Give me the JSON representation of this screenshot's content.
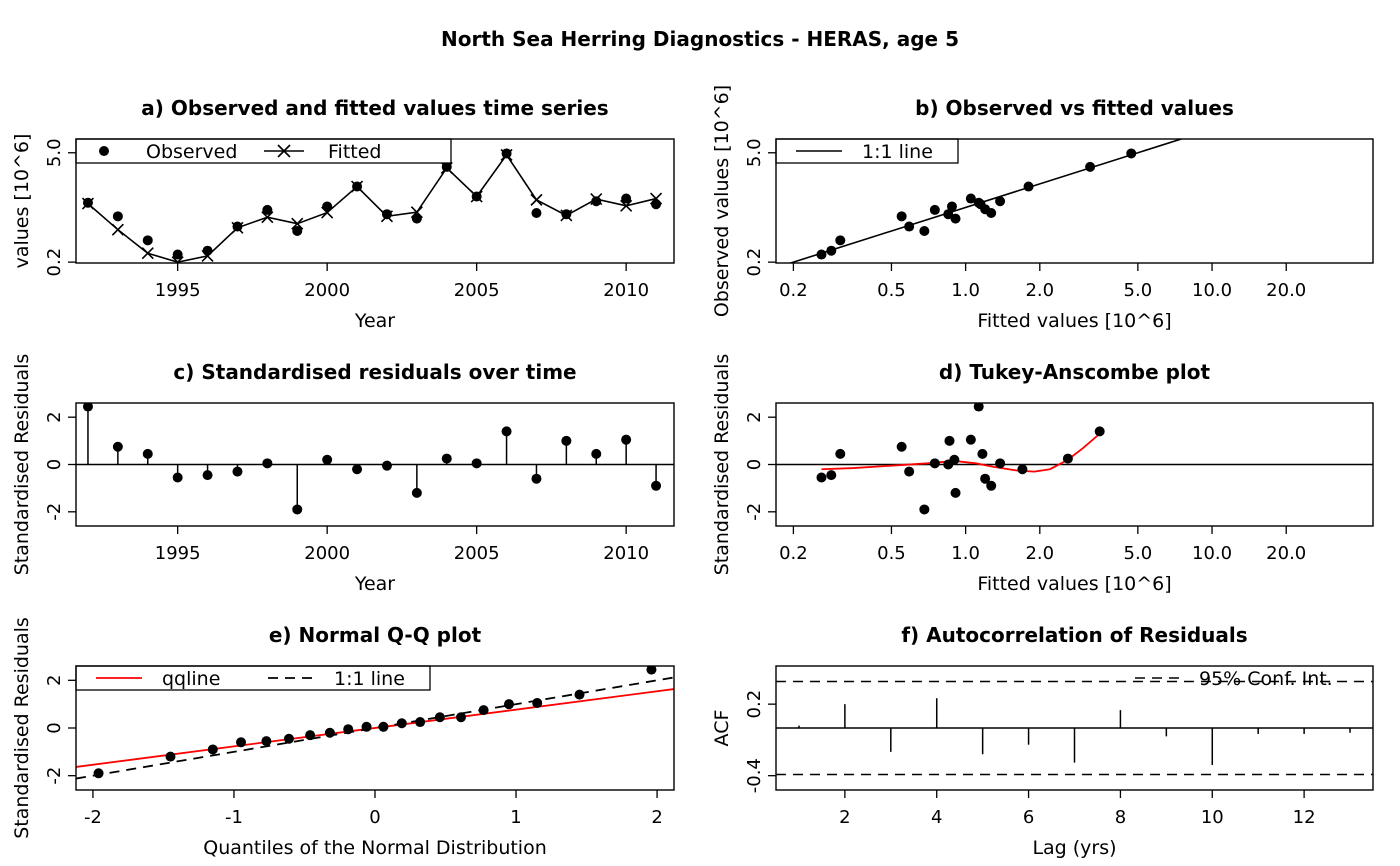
{
  "figure": {
    "title": "North Sea Herring Diagnostics - HERAS, age 5"
  },
  "chart_data": [
    {
      "id": "a",
      "type": "line",
      "title": "a) Observed and fitted values time series",
      "xlabel": "Year",
      "ylabel": "values [10^6]",
      "xlim": [
        1991.6,
        2011.6
      ],
      "ylim": [
        0.195,
        7.5
      ],
      "ylog": true,
      "x_ticks": [
        1995,
        2000,
        2005,
        2010
      ],
      "y_ticks": [
        0.2,
        5.0
      ],
      "y_tick_labels": [
        "0.2",
        "5.0"
      ],
      "x": [
        1992,
        1993,
        1994,
        1995,
        1996,
        1997,
        1998,
        1999,
        2000,
        2001,
        2002,
        2003,
        2004,
        2005,
        2006,
        2007,
        2008,
        2009,
        2010,
        2011
      ],
      "series": [
        {
          "name": "Observed",
          "marker": "dot",
          "values": [
            1.15,
            0.77,
            0.38,
            0.25,
            0.28,
            0.57,
            0.93,
            0.5,
            1.03,
            1.85,
            0.82,
            0.72,
            3.3,
            1.38,
            4.9,
            0.85,
            0.82,
            1.2,
            1.3,
            1.1
          ]
        },
        {
          "name": "Fitted",
          "marker": "cross",
          "line": true,
          "values": [
            1.12,
            0.52,
            0.26,
            0.2,
            0.24,
            0.55,
            0.75,
            0.62,
            0.86,
            1.85,
            0.77,
            0.87,
            3.2,
            1.38,
            4.7,
            1.25,
            0.79,
            1.28,
            1.05,
            1.3
          ]
        }
      ],
      "legend": "top-left"
    },
    {
      "id": "b",
      "type": "scatter",
      "title": "b) Observed vs fitted values",
      "xlabel": "Fitted values [10^6]",
      "ylabel": "Observed values [10^6]",
      "xlog": true,
      "ylog": true,
      "xlim": [
        0.17,
        45
      ],
      "ylim": [
        0.195,
        7.5
      ],
      "x_ticks": [
        0.2,
        0.5,
        1.0,
        2.0,
        5.0,
        10.0,
        20.0
      ],
      "x_tick_labels": [
        "0.2",
        "0.5",
        "1.0",
        "2.0",
        "5.0",
        "10.0",
        "20.0"
      ],
      "y_ticks": [
        0.2,
        5.0
      ],
      "y_tick_labels": [
        "0.2",
        "5.0"
      ],
      "points": [
        [
          0.26,
          0.25
        ],
        [
          0.285,
          0.28
        ],
        [
          0.31,
          0.38
        ],
        [
          0.55,
          0.77
        ],
        [
          0.59,
          0.57
        ],
        [
          0.75,
          0.93
        ],
        [
          0.85,
          0.82
        ],
        [
          0.68,
          0.5
        ],
        [
          0.88,
          1.03
        ],
        [
          1.05,
          1.3
        ],
        [
          1.2,
          0.95
        ],
        [
          1.27,
          0.85
        ],
        [
          1.13,
          1.15
        ],
        [
          1.38,
          1.2
        ],
        [
          1.15,
          1.1
        ],
        [
          0.91,
          0.72
        ],
        [
          1.8,
          1.85
        ],
        [
          3.2,
          3.3
        ],
        [
          4.7,
          4.9
        ]
      ],
      "lines": [
        {
          "name": "1:1 line",
          "type": "identity"
        }
      ],
      "legend": "top-left"
    },
    {
      "id": "c",
      "type": "line",
      "title": "c) Standardised residuals over time",
      "xlabel": "Year",
      "ylabel": "Standardised Residuals",
      "xlim": [
        1991.6,
        2011.6
      ],
      "ylim": [
        -2.6,
        2.6
      ],
      "x_ticks": [
        1995,
        2000,
        2005,
        2010
      ],
      "y_ticks": [
        -2,
        0,
        2
      ],
      "y_tick_labels": [
        "-2",
        "0",
        "2"
      ],
      "x": [
        1992,
        1993,
        1994,
        1995,
        1996,
        1997,
        1998,
        1999,
        2000,
        2001,
        2002,
        2003,
        2004,
        2005,
        2006,
        2007,
        2008,
        2009,
        2010,
        2011
      ],
      "values": [
        2.45,
        0.75,
        0.45,
        -0.55,
        -0.45,
        -0.3,
        0.05,
        -1.9,
        0.2,
        -0.2,
        -0.05,
        -1.2,
        0.25,
        0.05,
        1.4,
        -0.6,
        1.0,
        0.45,
        1.05,
        -0.9
      ],
      "style": "stems"
    },
    {
      "id": "d",
      "type": "scatter",
      "title": "d) Tukey-Anscombe plot",
      "xlabel": "Fitted values [10^6]",
      "ylabel": "Standardised Residuals",
      "xlog": true,
      "xlim": [
        0.17,
        45
      ],
      "ylim": [
        -2.6,
        2.6
      ],
      "x_ticks": [
        0.2,
        0.5,
        1.0,
        2.0,
        5.0,
        10.0,
        20.0
      ],
      "x_tick_labels": [
        "0.2",
        "0.5",
        "1.0",
        "2.0",
        "5.0",
        "10.0",
        "20.0"
      ],
      "y_ticks": [
        -2,
        0,
        2
      ],
      "y_tick_labels": [
        "-2",
        "0",
        "2"
      ],
      "points": [
        [
          0.26,
          -0.55
        ],
        [
          0.285,
          -0.45
        ],
        [
          0.31,
          0.45
        ],
        [
          0.55,
          0.75
        ],
        [
          0.59,
          -0.3
        ],
        [
          0.75,
          0.05
        ],
        [
          0.85,
          0.0
        ],
        [
          0.68,
          -1.9
        ],
        [
          0.86,
          1.0
        ],
        [
          1.05,
          1.05
        ],
        [
          1.2,
          -0.6
        ],
        [
          1.27,
          -0.9
        ],
        [
          1.13,
          2.45
        ],
        [
          1.38,
          0.05
        ],
        [
          1.17,
          0.45
        ],
        [
          0.91,
          -1.2
        ],
        [
          1.7,
          -0.2
        ],
        [
          0.9,
          0.2
        ],
        [
          2.6,
          0.25
        ],
        [
          3.5,
          1.4
        ]
      ],
      "smoother": {
        "color": "#ff0000",
        "x": [
          0.26,
          0.35,
          0.5,
          0.7,
          0.9,
          1.1,
          1.3,
          1.6,
          1.9,
          2.2,
          2.6,
          3.0,
          3.5
        ],
        "y": [
          -0.2,
          -0.15,
          -0.05,
          0.05,
          0.15,
          0.05,
          -0.1,
          -0.25,
          -0.3,
          -0.2,
          0.2,
          0.7,
          1.3
        ]
      }
    },
    {
      "id": "e",
      "type": "scatter",
      "title": "e) Normal Q-Q plot",
      "xlabel": "Quantiles of the Normal Distribution",
      "ylabel": "Standardised Residuals",
      "xlim": [
        -2.12,
        2.12
      ],
      "ylim": [
        -2.6,
        2.6
      ],
      "x_ticks": [
        -2,
        -1,
        0,
        1,
        2
      ],
      "x_tick_labels": [
        "-2",
        "-1",
        "0",
        "1",
        "2"
      ],
      "y_ticks": [
        -2,
        0,
        2
      ],
      "y_tick_labels": [
        "-2",
        "0",
        "2"
      ],
      "points": [
        [
          -1.96,
          -1.9
        ],
        [
          -1.45,
          -1.2
        ],
        [
          -1.15,
          -0.9
        ],
        [
          -0.95,
          -0.6
        ],
        [
          -0.77,
          -0.55
        ],
        [
          -0.61,
          -0.45
        ],
        [
          -0.46,
          -0.3
        ],
        [
          -0.32,
          -0.2
        ],
        [
          -0.19,
          -0.05
        ],
        [
          -0.06,
          0.05
        ],
        [
          0.06,
          0.05
        ],
        [
          0.19,
          0.2
        ],
        [
          0.32,
          0.25
        ],
        [
          0.46,
          0.45
        ],
        [
          0.61,
          0.45
        ],
        [
          0.77,
          0.75
        ],
        [
          0.95,
          1.0
        ],
        [
          1.15,
          1.05
        ],
        [
          1.45,
          1.4
        ],
        [
          1.96,
          2.45
        ]
      ],
      "lines": [
        {
          "name": "qqline",
          "color": "#ff0000",
          "style": "solid",
          "intercept": 0.0,
          "slope": 0.77
        },
        {
          "name": "1:1 line",
          "color": "#000000",
          "style": "dashed",
          "intercept": 0.0,
          "slope": 1.0
        }
      ],
      "legend": "top-left"
    },
    {
      "id": "f",
      "type": "bar",
      "title": "f) Autocorrelation of Residuals",
      "xlabel": "Lag (yrs)",
      "ylabel": "ACF",
      "xlim": [
        0.5,
        13.5
      ],
      "ylim": [
        -0.52,
        0.52
      ],
      "x_ticks": [
        2,
        4,
        6,
        8,
        10,
        12
      ],
      "x_tick_labels": [
        "2",
        "4",
        "6",
        "8",
        "10",
        "12"
      ],
      "y_ticks": [
        -0.4,
        0.2
      ],
      "y_tick_labels": [
        "-0.4",
        "0.2"
      ],
      "lags": [
        1,
        2,
        3,
        4,
        5,
        6,
        7,
        8,
        9,
        10,
        11,
        12,
        13
      ],
      "values": [
        0.02,
        0.2,
        -0.2,
        0.25,
        -0.22,
        -0.14,
        -0.29,
        0.15,
        -0.07,
        -0.31,
        -0.05,
        -0.05,
        -0.04
      ],
      "conf_int": {
        "name": "95% Conf. Int.",
        "value": 0.39,
        "style": "dashed"
      },
      "legend": "top-right"
    }
  ]
}
